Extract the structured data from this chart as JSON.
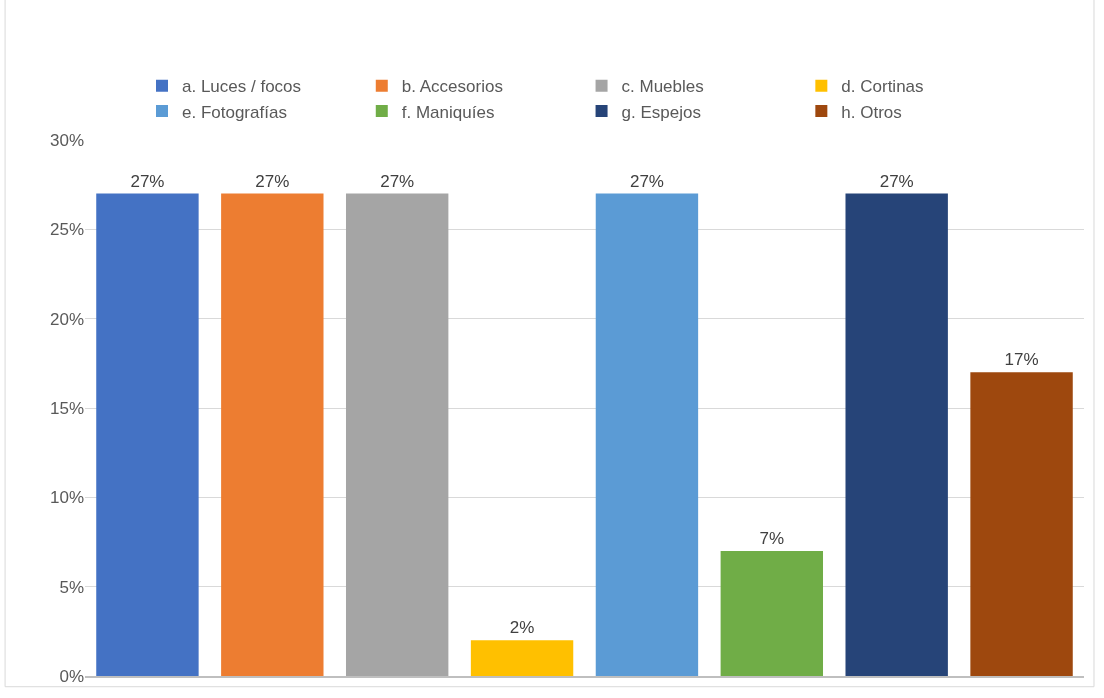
{
  "chart_data": {
    "type": "bar",
    "categories": [
      null,
      null,
      null,
      null,
      null,
      null,
      null,
      null
    ],
    "series": [
      {
        "name": "a. Luces / focos",
        "color": "#4472c4",
        "values": [
          27,
          null,
          null,
          null,
          null,
          null,
          null,
          null
        ],
        "value_labels": [
          "27%",
          null,
          null,
          null,
          null,
          null,
          null,
          null
        ]
      },
      {
        "name": "b. Accesorios",
        "color": "#ed7d31",
        "values": [
          null,
          27,
          null,
          null,
          null,
          null,
          null,
          null
        ],
        "value_labels": [
          null,
          "27%",
          null,
          null,
          null,
          null,
          null,
          null
        ]
      },
      {
        "name": "c. Muebles",
        "color": "#a5a5a5",
        "values": [
          null,
          null,
          27,
          null,
          null,
          null,
          null,
          null
        ],
        "value_labels": [
          null,
          null,
          "27%",
          null,
          null,
          null,
          null,
          null
        ]
      },
      {
        "name": "d. Cortinas",
        "color": "#ffc000",
        "values": [
          null,
          null,
          null,
          2,
          null,
          null,
          null,
          null
        ],
        "value_labels": [
          null,
          null,
          null,
          "2%",
          null,
          null,
          null,
          null
        ]
      },
      {
        "name": "e. Fotografías",
        "color": "#5b9bd5",
        "values": [
          null,
          null,
          null,
          null,
          27,
          null,
          null,
          null
        ],
        "value_labels": [
          null,
          null,
          null,
          null,
          "27%",
          null,
          null,
          null
        ]
      },
      {
        "name": "f. Maniquíes",
        "color": "#70ad47",
        "values": [
          null,
          null,
          null,
          null,
          null,
          7,
          null,
          null
        ],
        "value_labels": [
          null,
          null,
          null,
          null,
          null,
          "7%",
          null,
          null
        ]
      },
      {
        "name": "g. Espejos",
        "color": "#264478",
        "values": [
          null,
          null,
          null,
          null,
          null,
          null,
          27,
          null
        ],
        "value_labels": [
          null,
          null,
          null,
          null,
          null,
          null,
          "27%",
          null
        ]
      },
      {
        "name": "h. Otros",
        "color": "#9e480e",
        "values": [
          null,
          null,
          null,
          null,
          null,
          null,
          null,
          17
        ],
        "value_labels": [
          null,
          null,
          null,
          null,
          null,
          null,
          null,
          "17%"
        ]
      }
    ],
    "ylim": [
      0,
      30
    ],
    "yticks": [
      {
        "value": 0,
        "label": "0%"
      },
      {
        "value": 5,
        "label": "5%"
      },
      {
        "value": 10,
        "label": "10%"
      },
      {
        "value": 15,
        "label": "15%"
      },
      {
        "value": 20,
        "label": "20%"
      },
      {
        "value": 25,
        "label": "25%"
      },
      {
        "value": 30,
        "label": "30%"
      }
    ],
    "grid": "y",
    "legend": "top",
    "tick_labels": "y"
  }
}
